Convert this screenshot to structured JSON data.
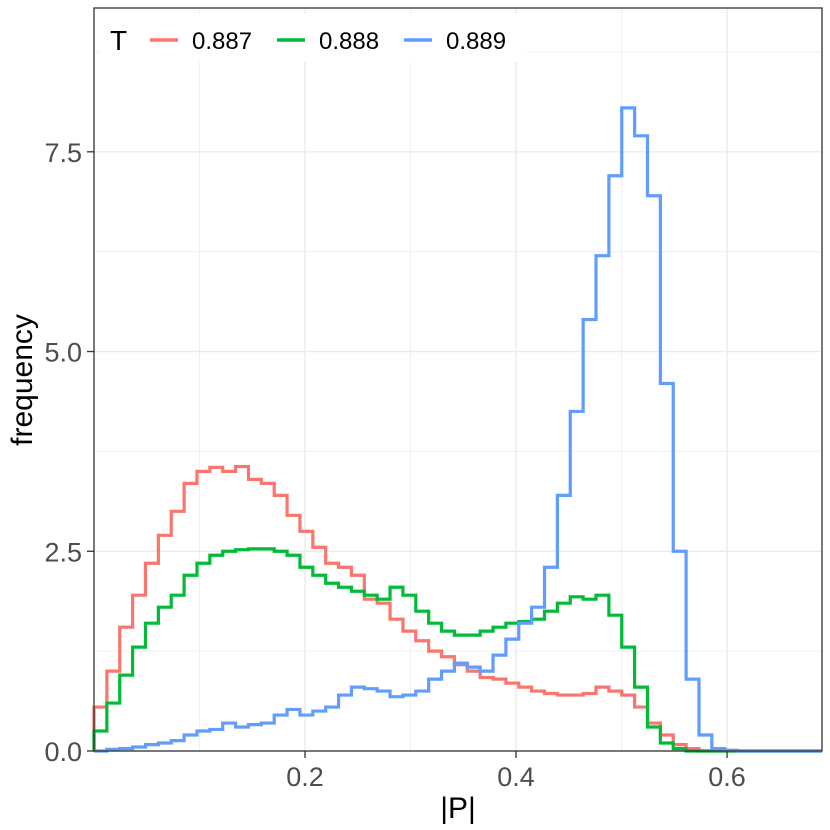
{
  "chart_data": {
    "type": "line",
    "subtype": "step-histogram",
    "title": "",
    "xlabel": "|P|",
    "ylabel": "frequency",
    "xlim": [
      0.0,
      0.69
    ],
    "ylim": [
      0.0,
      9.3
    ],
    "x_ticks": [
      0.2,
      0.4,
      0.6
    ],
    "x_tick_labels": [
      "0.2",
      "0.4",
      "0.6"
    ],
    "y_ticks": [
      0.0,
      2.5,
      5.0,
      7.5
    ],
    "y_tick_labels": [
      "0.0",
      "2.5",
      "5.0",
      "7.5"
    ],
    "grid": true,
    "legend": {
      "title": "T",
      "position": "top-left",
      "direction": "horizontal"
    },
    "bin_edges": [
      0.0,
      0.0122,
      0.0244,
      0.0366,
      0.0488,
      0.061,
      0.0732,
      0.0854,
      0.0976,
      0.1098,
      0.122,
      0.1342,
      0.1464,
      0.1586,
      0.1708,
      0.183,
      0.1952,
      0.2074,
      0.2196,
      0.2318,
      0.244,
      0.2562,
      0.2684,
      0.2806,
      0.2928,
      0.305,
      0.3172,
      0.3294,
      0.3416,
      0.3538,
      0.366,
      0.3782,
      0.3904,
      0.4026,
      0.4148,
      0.427,
      0.4392,
      0.4514,
      0.4636,
      0.4758,
      0.488,
      0.5002,
      0.5124,
      0.5246,
      0.5368,
      0.549,
      0.5612,
      0.5734,
      0.5856,
      0.5978,
      0.61,
      0.6222,
      0.6344,
      0.6466,
      0.6588,
      0.671,
      0.69
    ],
    "series": [
      {
        "name": "0.887",
        "color": "#F8766D",
        "values": [
          0.55,
          1.0,
          1.55,
          1.95,
          2.35,
          2.7,
          3.0,
          3.35,
          3.5,
          3.55,
          3.5,
          3.56,
          3.4,
          3.35,
          3.2,
          2.95,
          2.75,
          2.55,
          2.35,
          2.3,
          2.2,
          1.9,
          1.85,
          1.65,
          1.5,
          1.38,
          1.25,
          1.18,
          1.08,
          1.0,
          0.92,
          0.9,
          0.85,
          0.8,
          0.75,
          0.72,
          0.7,
          0.7,
          0.72,
          0.8,
          0.75,
          0.7,
          0.55,
          0.35,
          0.2,
          0.08,
          0.03,
          0.0,
          0.0,
          0.0,
          0.0,
          0.0,
          0.0,
          0.0,
          0.0,
          0.0
        ]
      },
      {
        "name": "0.888",
        "color": "#00BA38",
        "values": [
          0.25,
          0.6,
          0.95,
          1.3,
          1.6,
          1.8,
          1.95,
          2.2,
          2.35,
          2.45,
          2.5,
          2.52,
          2.53,
          2.53,
          2.5,
          2.45,
          2.3,
          2.2,
          2.1,
          2.05,
          2.0,
          1.95,
          1.9,
          2.05,
          1.95,
          1.75,
          1.6,
          1.5,
          1.45,
          1.45,
          1.5,
          1.55,
          1.6,
          1.62,
          1.65,
          1.75,
          1.85,
          1.93,
          1.9,
          1.95,
          1.7,
          1.3,
          0.8,
          0.3,
          0.1,
          0.03,
          0.0,
          0.0,
          0.0,
          0.0,
          0.0,
          0.0,
          0.0,
          0.0,
          0.0,
          0.0
        ]
      },
      {
        "name": "0.889",
        "color": "#619CFF",
        "values": [
          0.0,
          0.02,
          0.03,
          0.05,
          0.08,
          0.1,
          0.13,
          0.2,
          0.25,
          0.27,
          0.35,
          0.3,
          0.33,
          0.35,
          0.45,
          0.52,
          0.45,
          0.5,
          0.55,
          0.7,
          0.8,
          0.78,
          0.75,
          0.68,
          0.7,
          0.75,
          0.9,
          1.0,
          1.1,
          1.05,
          1.0,
          1.2,
          1.4,
          1.6,
          1.8,
          2.3,
          3.2,
          4.25,
          5.4,
          6.2,
          7.2,
          8.05,
          7.7,
          6.95,
          4.6,
          2.5,
          0.9,
          0.2,
          0.03,
          0.01,
          0.0,
          0.0,
          0.0,
          0.0,
          0.0,
          0.0
        ]
      }
    ]
  }
}
